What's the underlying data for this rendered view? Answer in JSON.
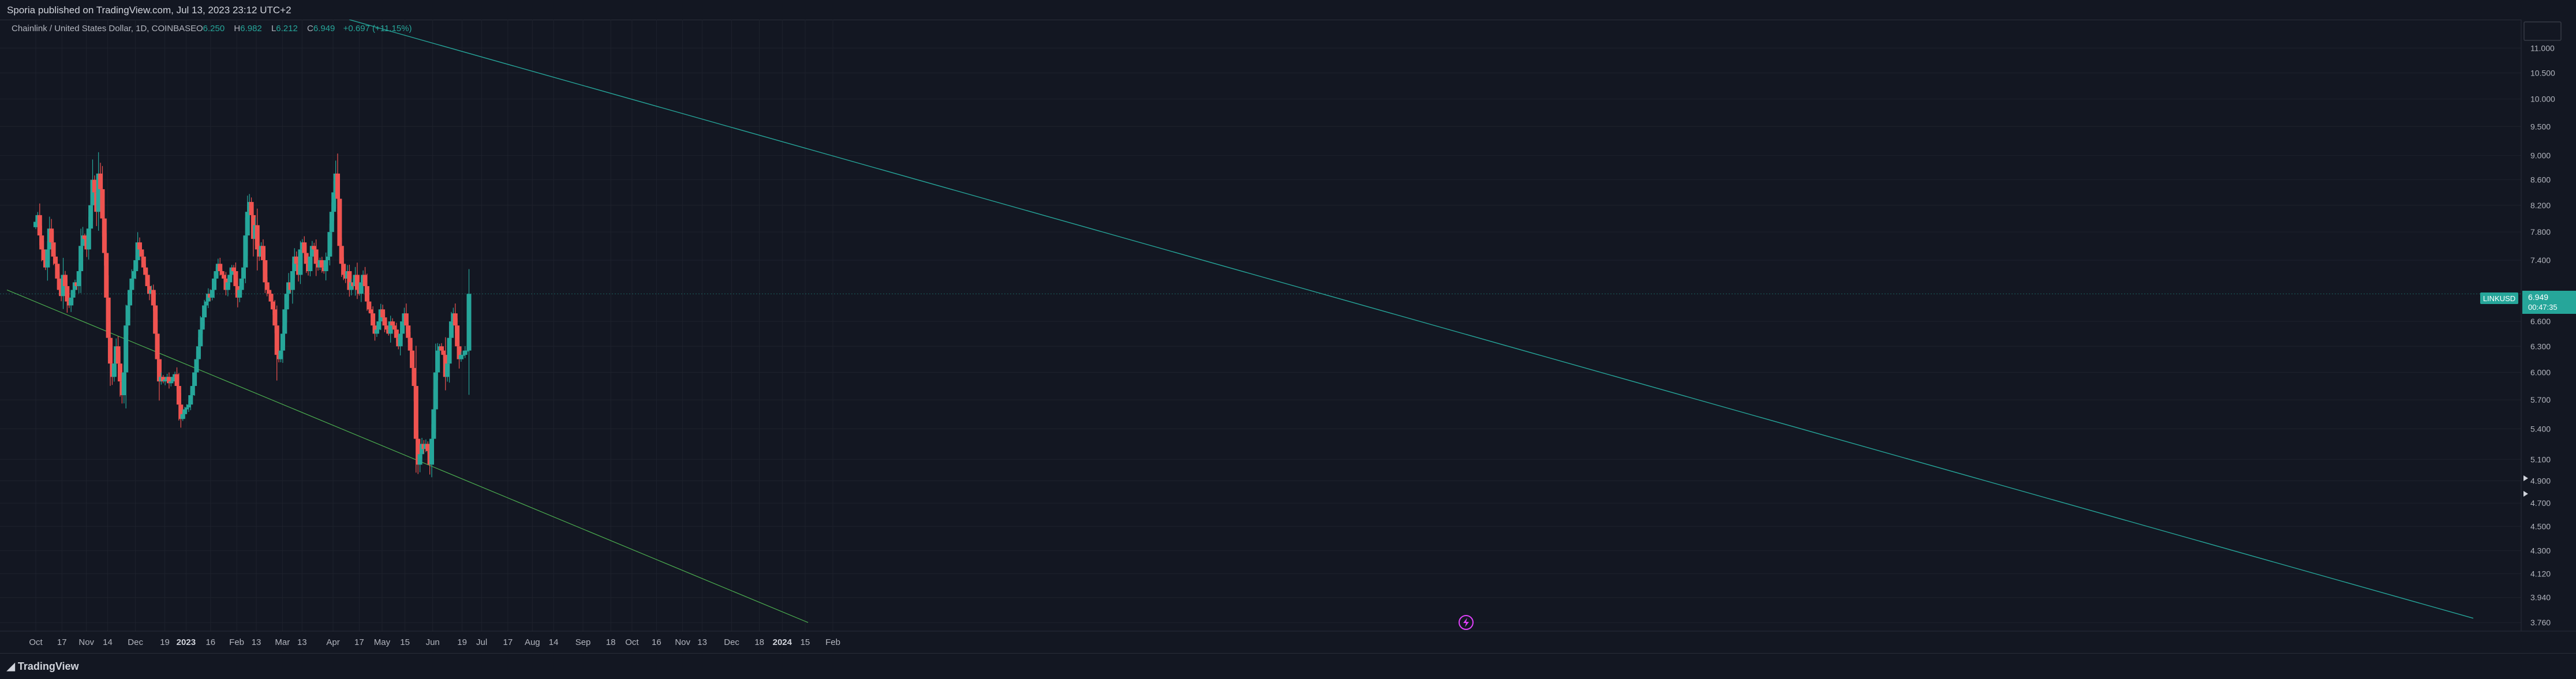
{
  "header": {
    "published": "Sporia published on TradingView.com, Jul 13, 2023 23:12 UTC+2"
  },
  "footer": {
    "brand": "TradingView"
  },
  "chart_data": {
    "type": "candlestick",
    "symbol_line": "Chainlink / United States Dollar, 1D, COINBASE",
    "ohlc": {
      "o_label": "O",
      "o_value": "6.250",
      "h_label": "H",
      "h_value": "6.982",
      "l_label": "L",
      "l_value": "6.212",
      "c_label": "C",
      "c_value": "6.949",
      "change": "+0.697 (+11.15%)"
    },
    "price_axis": {
      "ticks": [
        "11.000",
        "10.500",
        "10.000",
        "9.500",
        "9.000",
        "8.600",
        "8.200",
        "7.800",
        "7.400",
        "6.600",
        "6.300",
        "6.000",
        "5.700",
        "5.400",
        "5.100",
        "4.900",
        "4.700",
        "4.500",
        "4.300",
        "4.120",
        "3.940",
        "3.760"
      ],
      "log_scale": true,
      "range": [
        3.7,
        11.6
      ]
    },
    "last_price": {
      "symbol": "LINKUSD",
      "price": "6.949",
      "countdown": "00:47:35",
      "value": 6.949
    },
    "time_axis": [
      "Oct",
      "17",
      "Nov",
      "14",
      "Dec",
      "19",
      "2023",
      "16",
      "Feb",
      "13",
      "Mar",
      "13",
      "Apr",
      "17",
      "May",
      "15",
      "Jun",
      "19",
      "Jul",
      "17",
      "Aug",
      "14",
      "Sep",
      "18",
      "Oct",
      "16",
      "Nov",
      "13",
      "Dec",
      "18",
      "2024",
      "15",
      "Feb"
    ],
    "bold_time_labels": [
      "2023",
      "2024"
    ],
    "colors": {
      "up": "#26a69a",
      "down": "#ef5350",
      "background": "#131722",
      "grid": "#1e222d",
      "trendline": "#26a69a",
      "text": "#b2b5be"
    },
    "candles_start": "2022-10-01",
    "candles_end": "2023-07-13",
    "closes": [
      7.95,
      8.05,
      7.75,
      7.55,
      7.4,
      7.3,
      7.55,
      7.85,
      7.65,
      7.45,
      7.35,
      7.15,
      7.0,
      6.92,
      7.2,
      7.05,
      6.85,
      6.8,
      6.9,
      7.0,
      7.1,
      7.05,
      7.25,
      7.6,
      7.75,
      7.7,
      7.55,
      7.85,
      8.2,
      8.6,
      8.4,
      8.1,
      8.7,
      8.45,
      8.0,
      7.5,
      6.9,
      6.4,
      6.1,
      5.95,
      6.1,
      6.3,
      6.1,
      5.9,
      5.75,
      6.0,
      6.55,
      6.8,
      7.0,
      7.15,
      7.25,
      7.4,
      7.65,
      7.55,
      7.45,
      7.3,
      7.2,
      7.05,
      6.95,
      7.0,
      6.8,
      6.45,
      6.15,
      5.9,
      5.95,
      5.9,
      5.92,
      5.95,
      5.88,
      5.9,
      5.95,
      5.98,
      5.85,
      5.65,
      5.5,
      5.55,
      5.6,
      5.62,
      5.65,
      5.75,
      5.85,
      6.0,
      6.15,
      6.3,
      6.5,
      6.65,
      6.8,
      6.85,
      6.95,
      6.9,
      7.0,
      7.15,
      7.25,
      7.35,
      7.25,
      7.2,
      7.15,
      7.0,
      7.1,
      7.2,
      7.3,
      7.25,
      7.05,
      6.9,
      7.0,
      7.15,
      7.3,
      7.75,
      8.1,
      8.25,
      8.05,
      7.7,
      7.9,
      7.55,
      7.45,
      7.6,
      7.4,
      7.1,
      7.0,
      6.95,
      6.85,
      6.75,
      6.55,
      6.2,
      6.15,
      6.25,
      6.45,
      6.75,
      6.95,
      7.1,
      7.0,
      7.25,
      7.45,
      7.35,
      7.2,
      7.55,
      7.65,
      7.5,
      7.35,
      7.25,
      7.45,
      7.6,
      7.55,
      7.35,
      7.3,
      7.4,
      7.3,
      7.25,
      7.4,
      7.45,
      7.8,
      8.1,
      8.4,
      8.7,
      8.3,
      7.6,
      7.35,
      7.2,
      7.15,
      7.25,
      7.0,
      7.1,
      7.05,
      7.2,
      7.0,
      6.95,
      7.1,
      7.2,
      7.05,
      6.85,
      6.75,
      6.7,
      6.55,
      6.45,
      6.5,
      6.6,
      6.75,
      6.65,
      6.55,
      6.5,
      6.45,
      6.6,
      6.55,
      6.5,
      6.4,
      6.3,
      6.45,
      6.6,
      6.7,
      6.55,
      6.4,
      6.25,
      6.05,
      5.85,
      5.3,
      5.05,
      5.15,
      5.25,
      5.2,
      5.25,
      5.18,
      5.05,
      5.3,
      5.6,
      6.0,
      6.25,
      6.3,
      6.25,
      6.2,
      5.95,
      6.1,
      6.4,
      6.6,
      6.7,
      6.55,
      6.3,
      6.15,
      6.2,
      6.2,
      6.25,
      6.25,
      6.949
    ]
  }
}
